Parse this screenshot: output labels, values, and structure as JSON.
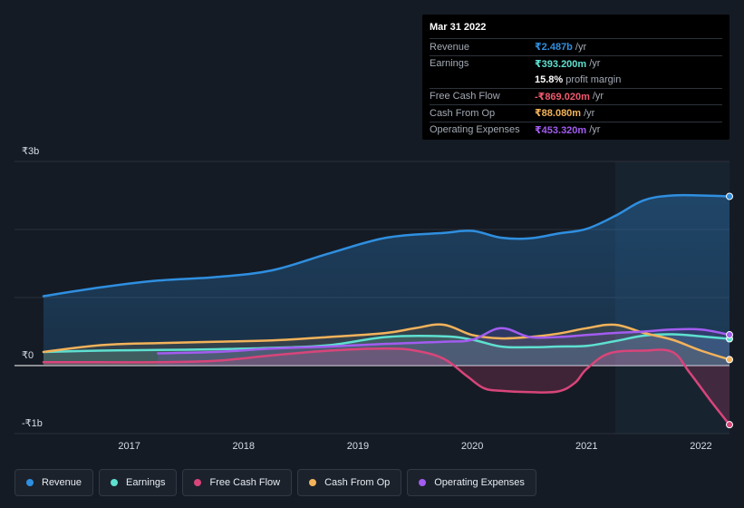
{
  "tooltip": {
    "date": "Mar 31 2022",
    "rows": [
      {
        "label": "Revenue",
        "value": "₹2.487b",
        "unit": "/yr",
        "color": "#2f8fe0"
      },
      {
        "label": "Earnings",
        "value": "₹393.200m",
        "unit": "/yr",
        "color": "#5ee0d0"
      },
      {
        "label": "",
        "value": "15.8%",
        "unit": "profit margin",
        "color": "#ffffff"
      },
      {
        "label": "Free Cash Flow",
        "value": "-₹869.020m",
        "unit": "/yr",
        "color": "#f05a6e"
      },
      {
        "label": "Cash From Op",
        "value": "₹88.080m",
        "unit": "/yr",
        "color": "#f3b35a"
      },
      {
        "label": "Operating Expenses",
        "value": "₹453.320m",
        "unit": "/yr",
        "color": "#a25cf0"
      }
    ]
  },
  "chart_data": {
    "type": "area",
    "yaxis": {
      "labels": [
        "₹3b",
        "₹0",
        "-₹1b"
      ],
      "ylim": [
        -1,
        3
      ],
      "unit": "₹b"
    },
    "xaxis": {
      "ticks": [
        "2017",
        "2018",
        "2019",
        "2020",
        "2021",
        "2022"
      ],
      "tick_values": [
        2017,
        2018,
        2019,
        2020,
        2021,
        2022
      ],
      "xlim": [
        2016.25,
        2022.25
      ]
    },
    "forecast_start": 2021.25,
    "series": [
      {
        "name": "Revenue",
        "color": "#2f8fe0",
        "x": [
          2016.25,
          2016.75,
          2017.25,
          2017.75,
          2018.25,
          2018.75,
          2019.25,
          2019.75,
          2020.0,
          2020.25,
          2020.5,
          2020.75,
          2021.0,
          2021.25,
          2021.5,
          2021.75,
          2022.0,
          2022.25
        ],
        "y": [
          1.02,
          1.15,
          1.25,
          1.3,
          1.4,
          1.65,
          1.88,
          1.95,
          1.98,
          1.88,
          1.87,
          1.94,
          2.01,
          2.2,
          2.43,
          2.5,
          2.5,
          2.487
        ]
      },
      {
        "name": "Earnings",
        "color": "#5ee0d0",
        "x": [
          2016.25,
          2016.75,
          2017.25,
          2017.75,
          2018.25,
          2018.75,
          2019.25,
          2019.75,
          2020.0,
          2020.25,
          2020.5,
          2020.75,
          2021.0,
          2021.25,
          2021.5,
          2021.75,
          2022.0,
          2022.25
        ],
        "y": [
          0.2,
          0.22,
          0.23,
          0.24,
          0.26,
          0.3,
          0.42,
          0.43,
          0.38,
          0.28,
          0.27,
          0.28,
          0.29,
          0.36,
          0.44,
          0.46,
          0.43,
          0.393
        ]
      },
      {
        "name": "Free Cash Flow",
        "color": "#d8457a",
        "x": [
          2016.25,
          2016.75,
          2017.25,
          2017.75,
          2018.25,
          2018.75,
          2019.25,
          2019.5,
          2019.75,
          2019.95,
          2020.1,
          2020.25,
          2020.5,
          2020.75,
          2020.9,
          2021.0,
          2021.2,
          2021.5,
          2021.75,
          2021.9,
          2022.1,
          2022.25
        ],
        "y": [
          0.05,
          0.05,
          0.05,
          0.07,
          0.15,
          0.22,
          0.25,
          0.22,
          0.1,
          -0.15,
          -0.33,
          -0.37,
          -0.39,
          -0.38,
          -0.25,
          -0.05,
          0.18,
          0.22,
          0.2,
          -0.1,
          -0.55,
          -0.869
        ]
      },
      {
        "name": "Cash From Op",
        "color": "#f3b35a",
        "x": [
          2016.25,
          2016.75,
          2017.25,
          2017.75,
          2018.25,
          2018.75,
          2019.25,
          2019.5,
          2019.75,
          2020.0,
          2020.25,
          2020.5,
          2020.75,
          2021.0,
          2021.25,
          2021.5,
          2021.75,
          2022.0,
          2022.25
        ],
        "y": [
          0.2,
          0.3,
          0.33,
          0.35,
          0.37,
          0.42,
          0.48,
          0.55,
          0.6,
          0.45,
          0.4,
          0.42,
          0.47,
          0.55,
          0.6,
          0.48,
          0.38,
          0.22,
          0.088
        ]
      },
      {
        "name": "Operating Expenses",
        "color": "#a25cf0",
        "x": [
          2017.25,
          2017.75,
          2018.25,
          2018.75,
          2019.25,
          2019.75,
          2020.0,
          2020.25,
          2020.5,
          2020.75,
          2021.0,
          2021.25,
          2021.5,
          2021.75,
          2022.0,
          2022.25
        ],
        "y": [
          0.18,
          0.2,
          0.25,
          0.28,
          0.32,
          0.35,
          0.38,
          0.55,
          0.42,
          0.42,
          0.45,
          0.48,
          0.5,
          0.53,
          0.53,
          0.453
        ]
      }
    ]
  },
  "legend": [
    {
      "label": "Revenue",
      "color": "#2f8fe0"
    },
    {
      "label": "Earnings",
      "color": "#5ee0d0"
    },
    {
      "label": "Free Cash Flow",
      "color": "#d8457a"
    },
    {
      "label": "Cash From Op",
      "color": "#f3b35a"
    },
    {
      "label": "Operating Expenses",
      "color": "#a25cf0"
    }
  ]
}
